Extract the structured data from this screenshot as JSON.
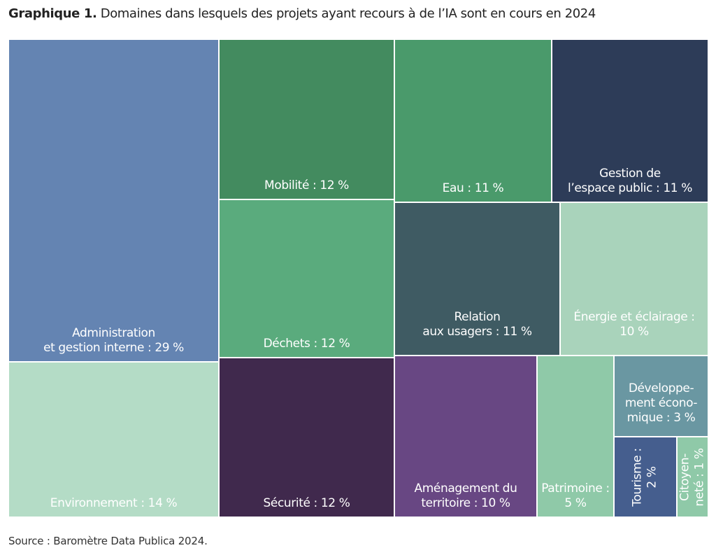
{
  "title_bold": "Graphique 1.",
  "title_rest": " Domaines dans lesquels des projets ayant recours à de l’IA sont en cours en 2024",
  "source": "Source : Baromètre Data Publica 2024.",
  "chart_data": {
    "type": "treemap",
    "unit": "%",
    "items": [
      {
        "key": "administration",
        "lines": [
          "Administration",
          "et gestion interne : 29 %"
        ],
        "value": 29,
        "color": "#6484b2"
      },
      {
        "key": "environnement",
        "lines": [
          "Environnement : 14 %"
        ],
        "value": 14,
        "color": "#b4dcc6"
      },
      {
        "key": "mobilite",
        "lines": [
          "Mobilité : 12 %"
        ],
        "value": 12,
        "color": "#438b5f"
      },
      {
        "key": "dechets",
        "lines": [
          "Déchets : 12 %"
        ],
        "value": 12,
        "color": "#5aab7d"
      },
      {
        "key": "securite",
        "lines": [
          "Sécurité : 12 %"
        ],
        "value": 12,
        "color": "#40294d"
      },
      {
        "key": "eau",
        "lines": [
          "Eau : 11 %"
        ],
        "value": 11,
        "color": "#4a9a6b"
      },
      {
        "key": "espace-public",
        "lines": [
          "Gestion de",
          "l’espace public : 11 %"
        ],
        "value": 11,
        "color": "#2d3c58"
      },
      {
        "key": "relation-usagers",
        "lines": [
          "Relation",
          "aux usagers : 11 %"
        ],
        "value": 11,
        "color": "#3f5b63"
      },
      {
        "key": "energie",
        "lines": [
          "Énergie et éclairage :",
          "10 %"
        ],
        "value": 10,
        "color": "#a9d3bb"
      },
      {
        "key": "amenagement",
        "lines": [
          "Aménagement du",
          "territoire : 10 %"
        ],
        "value": 10,
        "color": "#684783"
      },
      {
        "key": "patrimoine",
        "lines": [
          "Patrimoine :",
          "5 %"
        ],
        "value": 5,
        "color": "#8fc9a8"
      },
      {
        "key": "developpement",
        "lines": [
          "Développe-",
          "ment écono-",
          "mique : 3 %"
        ],
        "value": 3,
        "color": "#6a97a2"
      },
      {
        "key": "tourisme",
        "lines": [
          "Tourisme :",
          "2 %"
        ],
        "value": 2,
        "color": "#455e8e"
      },
      {
        "key": "citoyennete",
        "lines": [
          "Citoyen-",
          "neté : 1 %"
        ],
        "value": 1,
        "color": "#8fc9a8"
      }
    ]
  }
}
